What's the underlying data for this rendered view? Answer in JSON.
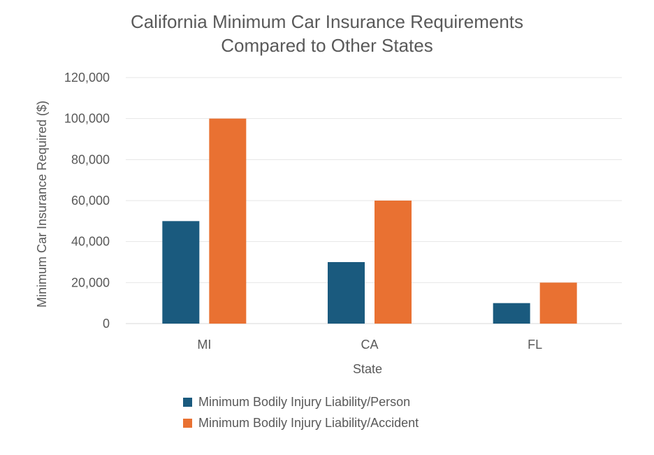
{
  "chart_data": {
    "type": "bar",
    "title_lines": [
      "California Minimum Car Insurance Requirements",
      "Compared to Other States"
    ],
    "xlabel": "State",
    "ylabel": "Minimum Car Insurance Required ($)",
    "categories": [
      "MI",
      "CA",
      "FL"
    ],
    "series": [
      {
        "name": "Minimum Bodily Injury Liability/Person",
        "color": "#1a5a7e",
        "values": [
          50000,
          30000,
          10000
        ]
      },
      {
        "name": "Minimum Bodily Injury Liability/Accident",
        "color": "#e97132",
        "values": [
          100000,
          60000,
          20000
        ]
      }
    ],
    "ylim": [
      0,
      120000
    ],
    "yticks": [
      0,
      20000,
      40000,
      60000,
      80000,
      100000,
      120000
    ],
    "ytick_labels": [
      "0",
      "20,000",
      "40,000",
      "60,000",
      "80,000",
      "100,000",
      "120,000"
    ],
    "grid": true,
    "legend_position": "bottom"
  }
}
